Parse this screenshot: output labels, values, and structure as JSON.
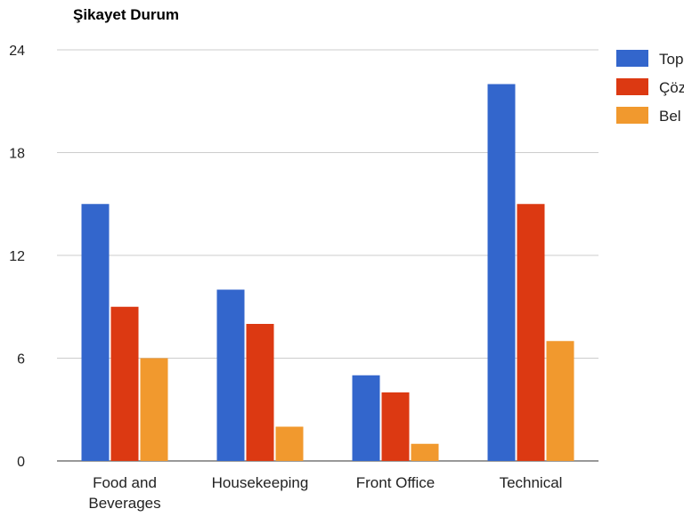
{
  "chart_data": {
    "type": "bar",
    "title": "Şikayet Durum",
    "xlabel": "",
    "ylabel": "",
    "categories": [
      "Food and Beverages",
      "Housekeeping",
      "Front Office",
      "Technical"
    ],
    "category_lines": [
      [
        "Food and",
        "Beverages"
      ],
      [
        "Housekeeping"
      ],
      [
        "Front Office"
      ],
      [
        "Technical"
      ]
    ],
    "series": [
      {
        "name": "Top",
        "color": "#3366cc",
        "values": [
          15,
          10,
          5,
          22
        ]
      },
      {
        "name": "Çöz",
        "color": "#dc3912",
        "values": [
          9,
          8,
          4,
          15
        ]
      },
      {
        "name": "Bel",
        "color": "#f1992e",
        "values": [
          6,
          2,
          1,
          7
        ]
      }
    ],
    "ylim": [
      0,
      24
    ],
    "yticks": [
      0,
      6,
      12,
      18,
      24
    ],
    "grid": true,
    "legend_position": "right"
  }
}
